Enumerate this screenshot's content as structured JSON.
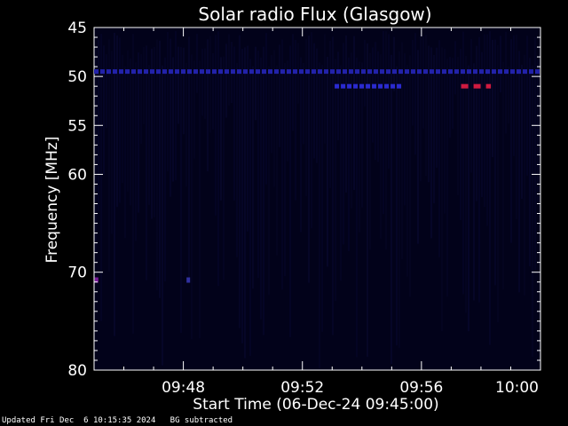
{
  "chart_data": {
    "type": "heatmap",
    "title": "Solar radio Flux (Glasgow)",
    "xlabel": "Start Time (06-Dec-24 09:45:00)",
    "ylabel": "Frequency [MHz]",
    "x_range": [
      "09:45:00",
      "10:00:00"
    ],
    "x_ticks": [
      "09:48",
      "09:52",
      "09:56",
      "10:00"
    ],
    "y_ticks": [
      45,
      50,
      55,
      60,
      70,
      80
    ],
    "ylim": [
      45,
      80
    ],
    "background_color": "#02021a",
    "features": [
      {
        "kind": "band",
        "freq_mhz": 49.5,
        "start": "09:45:00",
        "end": "10:00:00",
        "level": "medium",
        "color": "#2222aa"
      },
      {
        "kind": "band",
        "freq_mhz": 51.0,
        "start": "09:53:05",
        "end": "09:55:20",
        "level": "medium",
        "color": "#2a2ad0"
      },
      {
        "kind": "band",
        "freq_mhz": 51.0,
        "start": "09:57:20",
        "end": "09:58:20",
        "level": "high",
        "color": "#d01a40"
      },
      {
        "kind": "spot",
        "freq_mhz": 70.8,
        "time": "09:45:05",
        "level": "medium",
        "color": "#7a1a9a"
      },
      {
        "kind": "spot",
        "freq_mhz": 70.8,
        "time": "09:48:10",
        "level": "low",
        "color": "#3030a0"
      }
    ]
  },
  "footer": {
    "updated": "Updated Fri Dec  6 10:15:35 2024",
    "note": "BG subtracted"
  }
}
